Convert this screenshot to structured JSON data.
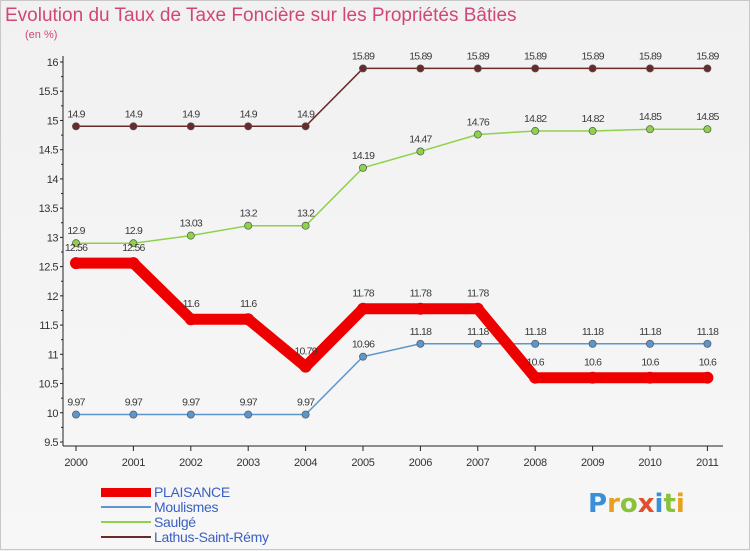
{
  "title": "Evolution du Taux de Taxe Foncière sur les Propriétés Bâties",
  "unit": "(en %)",
  "brand": {
    "text": "Proxiti",
    "colors": [
      "#3a8fd8",
      "#e8a020",
      "#8ac23a",
      "#e05030",
      "#3a8fd8",
      "#8ac23a",
      "#e8a020"
    ]
  },
  "chart_data": {
    "type": "line",
    "x": [
      "2000",
      "2001",
      "2002",
      "2003",
      "2004",
      "2005",
      "2006",
      "2007",
      "2008",
      "2009",
      "2010",
      "2011"
    ],
    "ylim": [
      9.5,
      16
    ],
    "yticks": [
      "9.5",
      "10",
      "10.5",
      "11",
      "11.5",
      "12",
      "12.5",
      "13",
      "13.5",
      "14",
      "14.5",
      "15",
      "15.5",
      "16"
    ],
    "grid": false,
    "legend_position": "bottom-left",
    "series": [
      {
        "name": "Lathus-Saint-Rémy",
        "color": "#6b2a2a",
        "values": [
          14.9,
          14.9,
          14.9,
          14.9,
          14.9,
          15.89,
          15.89,
          15.89,
          15.89,
          15.89,
          15.89,
          15.89
        ],
        "labels": [
          "14.9",
          "14.9",
          "14.9",
          "14.9",
          "14.9",
          "15.89",
          "15.89",
          "15.89",
          "15.89",
          "15.89",
          "15.89",
          "15.89"
        ]
      },
      {
        "name": "Saulgé",
        "color": "#8ed24a",
        "values": [
          12.9,
          12.9,
          13.03,
          13.2,
          13.2,
          14.19,
          14.47,
          14.76,
          14.82,
          14.82,
          14.85,
          14.85
        ],
        "labels": [
          "12.9",
          "12.9",
          "13.03",
          "13.2",
          "13.2",
          "14.19",
          "14.47",
          "14.76",
          "14.82",
          "14.82",
          "14.85",
          "14.85"
        ]
      },
      {
        "name": "Moulismes",
        "color": "#5b96cc",
        "values": [
          9.97,
          9.97,
          9.97,
          9.97,
          9.97,
          10.96,
          11.18,
          11.18,
          11.18,
          11.18,
          11.18,
          11.18
        ],
        "labels": [
          "9.97",
          "9.97",
          "9.97",
          "9.97",
          "9.97",
          "10.96",
          "11.18",
          "11.18",
          "11.18",
          "11.18",
          "11.18",
          "11.18"
        ]
      },
      {
        "name": "PLAISANCE",
        "color": "#ee0000",
        "values": [
          12.56,
          12.56,
          11.6,
          11.6,
          10.79,
          11.78,
          11.78,
          11.78,
          10.6,
          10.6,
          10.6,
          10.6
        ],
        "labels": [
          "12.56",
          "12.56",
          "11.6",
          "11.6",
          "10.79",
          "11.78",
          "11.78",
          "11.78",
          "10.6",
          "10.6",
          "10.6",
          "10.6"
        ]
      }
    ],
    "legend": [
      "PLAISANCE",
      "Moulismes",
      "Saulgé",
      "Lathus-Saint-Rémy"
    ]
  }
}
